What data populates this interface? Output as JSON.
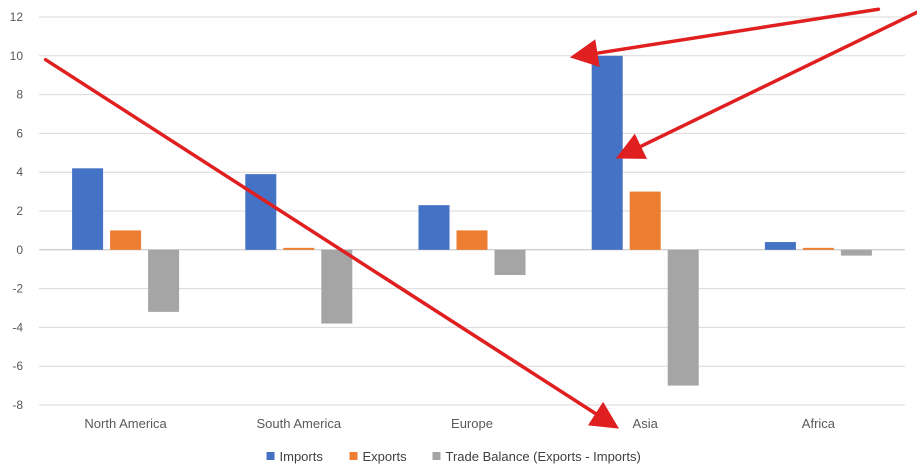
{
  "chart_data": {
    "type": "bar",
    "categories": [
      "North America",
      "South America",
      "Europe",
      "Asia",
      "Africa"
    ],
    "series": [
      {
        "name": "Imports",
        "color": "#4472c4",
        "values": [
          4.2,
          3.9,
          2.3,
          10.0,
          0.4
        ]
      },
      {
        "name": "Exports",
        "color": "#ed7d31",
        "values": [
          1.0,
          0.1,
          1.0,
          3.0,
          0.1
        ]
      },
      {
        "name": "Trade Balance (Exports - Imports)",
        "color": "#a5a5a5",
        "values": [
          -3.2,
          -3.8,
          -1.3,
          -7.0,
          -0.3
        ]
      }
    ],
    "ylim": [
      -8,
      12
    ],
    "yticks": [
      -8,
      -6,
      -4,
      -2,
      0,
      2,
      4,
      6,
      8,
      10,
      12
    ],
    "grid": true,
    "legend_position": "bottom",
    "annotations": {
      "arrow_color": "#e02020",
      "arrows": [
        {
          "from": [
            "North America",
            9.8
          ],
          "to": [
            "Asia",
            -8.0
          ],
          "points_at": "Asia category label"
        },
        {
          "from": [
            "Africa",
            12.4
          ],
          "to": [
            "Asia",
            10.0
          ],
          "points_at": "Asia Imports bar"
        },
        {
          "from": [
            "Africa",
            12.4
          ],
          "to": [
            "Asia",
            3.5
          ],
          "points_at": "Asia Exports bar"
        }
      ]
    }
  }
}
